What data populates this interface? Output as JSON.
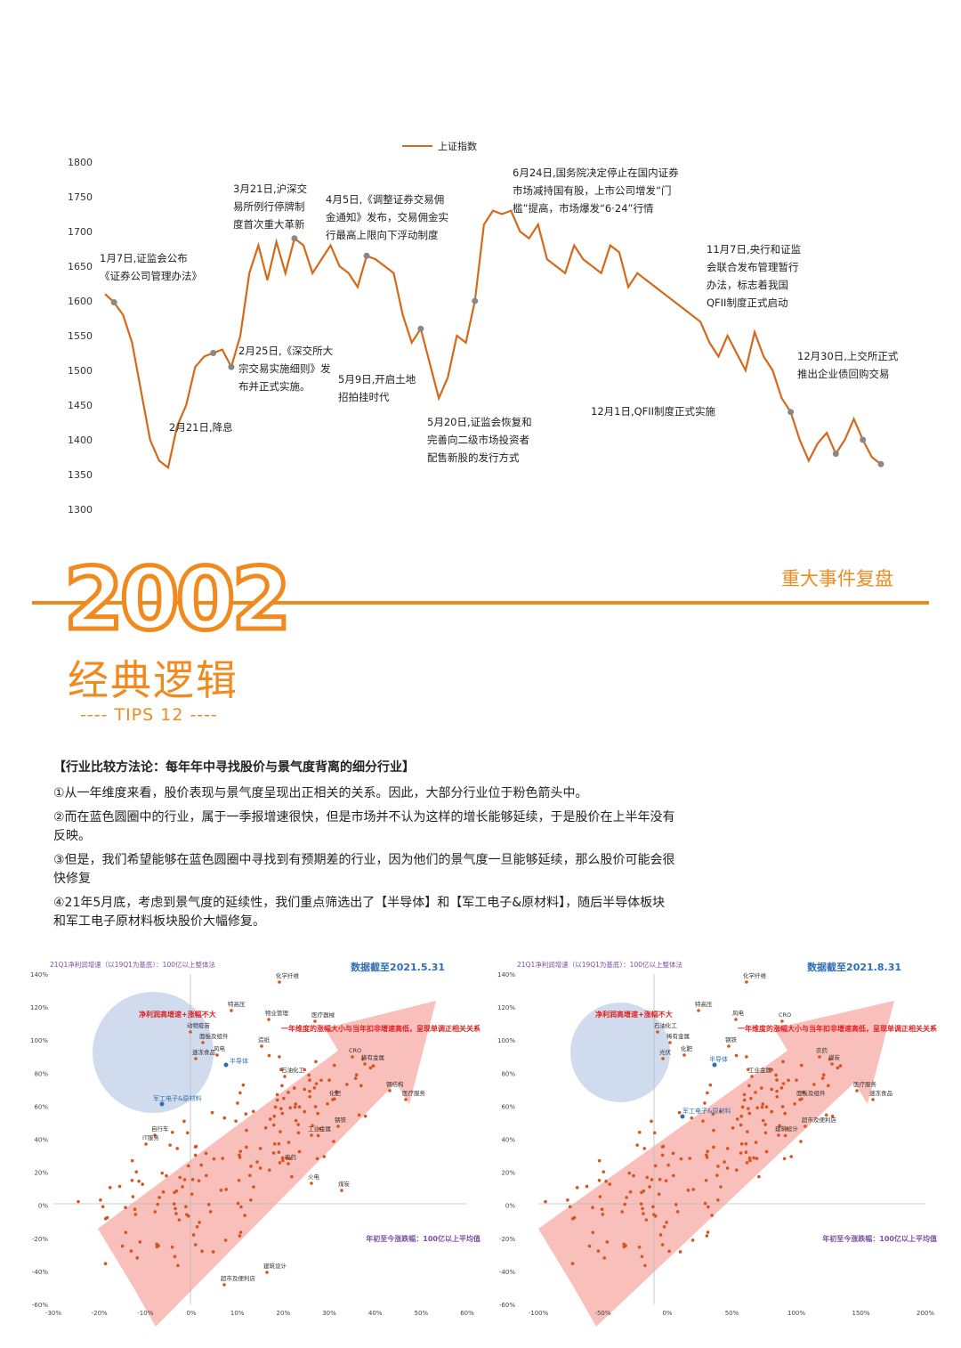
{
  "top_chart": {
    "legend": "上证指数",
    "y_ticks": [
      1800,
      1750,
      1700,
      1650,
      1600,
      1550,
      1500,
      1450,
      1400,
      1350,
      1300
    ],
    "line_color": "#d4691a",
    "annotations": [
      "1月7日,证监会公布\n《证券公司管理办法》",
      "2月21日,降息",
      "2月25日,《深交所大\n宗交易实施细则》发\n布并正式实施。",
      "3月21日,沪深交\n易所例行停牌制\n度首次重大革新",
      "4月5日,《调整证券交易佣\n金通知》发布，交易佣金实\n行最高上限向下浮动制度",
      "5月9日,开启土地\n招拍挂时代",
      "5月20日,证监会恢复和\n完善向二级市场投资者\n配售新股的发行方式",
      "6月24日,国务院决定停止在国内证券\n市场减持国有股，上市公司增发“门\n槛”提高，市场爆发“6·24”行情",
      "11月7日,央行和证监\n会联合发布管理暂行\n办法，标志着我国\nQFII制度正式启动",
      "12月1日,QFII制度正式实施",
      "12月30日,上交所正式\n推出企业债回购交易"
    ]
  },
  "header": {
    "year": "2002",
    "subtitle": "经典逻辑",
    "tips": "---- TIPS 12 ----",
    "section": "重大事件复盘",
    "accent": "#f08a1e"
  },
  "text": {
    "heading": "【行业比较方法论：每年年中寻找股价与景气度背离的细分行业】",
    "p1": "①从一年维度来看，股价表现与景气度呈现出正相关的关系。因此，大部分行业位于粉色箭头中。",
    "p2": "②而在蓝色圆圈中的行业，属于一季报增速很快，但是市场并不认为这样的增长能够延续，于是股价在上半年没有反映。",
    "p3": "③但是，我们希望能够在蓝色圆圈中寻找到有预期差的行业，因为他们的景气度一旦能够延续，那么股价可能会很快修复",
    "p4": "④21年5月底，考虑到景气度的延续性，我们重点筛选出了【半导体】和【军工电子&原材料】，随后半导体板块和军工电子原材料板块股价大幅修复。"
  },
  "scatter_left": {
    "ylabel": "21Q1净利润增速（以19Q1为基底）：100亿以上整体法",
    "date_label": "数据截至2021.5.31",
    "red_label": "一年维度的涨幅大小与当年扣非增速高低，呈现单调正相关关系",
    "circle_label": "净利润高增速+涨幅不大",
    "xlabel": "年初至今涨跌幅：100亿以上平均值",
    "x_ticks": [
      "-30%",
      "-20%",
      "-10%",
      "0%",
      "10%",
      "20%",
      "30%",
      "40%",
      "50%",
      "60%"
    ],
    "y_ticks": [
      "140%",
      "120%",
      "100%",
      "80%",
      "60%",
      "40%",
      "20%",
      "0%",
      "-20%",
      "-40%",
      "-60%"
    ],
    "blue_points": [
      "半导体",
      "军工电子&原材料"
    ],
    "labels": [
      "化学纤维",
      "特高压",
      "物业管理",
      "医疗器械",
      "动物疫苗",
      "面板及组件",
      "风电",
      "速冻食品",
      "造纸",
      "石油化工",
      "CRO",
      "稀有金属",
      "钢结构",
      "医疗服务",
      "化肥",
      "钢铁",
      "工业金属",
      "农药",
      "火电",
      "煤炭",
      "建筑设计",
      "超市及便利店",
      "自行车",
      "IT服务"
    ]
  },
  "scatter_right": {
    "ylabel": "21Q1净利润增速（以19Q1为基底）：100亿以上整体法",
    "date_label": "数据截至2021.8.31",
    "red_label": "一年维度的涨幅大小与当年扣非增速高低，呈现单调正相关关系",
    "circle_label": "净利润高增速+涨幅不大",
    "xlabel": "年初至今涨跌幅：100亿以上平均值",
    "x_ticks": [
      "-100%",
      "-50%",
      "0%",
      "50%",
      "100%",
      "150%",
      "200%"
    ],
    "y_ticks": [
      "140%",
      "120%",
      "100%",
      "80%",
      "60%",
      "40%",
      "20%",
      "0%",
      "-20%",
      "-40%",
      "-60%"
    ],
    "blue_points": [
      "半导体",
      "军工电子&原材料"
    ],
    "labels": [
      "化学纤维",
      "特高压",
      "风电",
      "CRO",
      "石油化工",
      "稀有金属",
      "化肥",
      "光伏",
      "钢铁",
      "工业金属",
      "农药",
      "煤炭",
      "医疗服务",
      "速冻食品",
      "面板及组件",
      "超市及便利店",
      "建筑设计"
    ]
  }
}
